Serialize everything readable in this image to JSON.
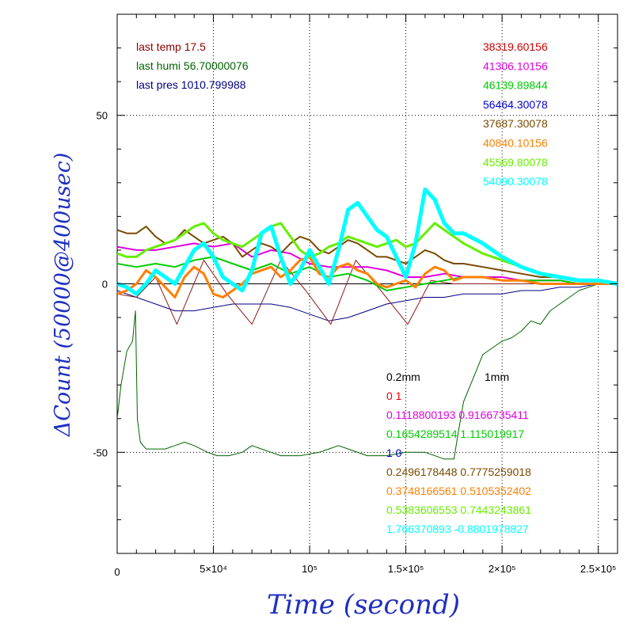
{
  "chart_data": {
    "type": "line",
    "xlabel": "Time (second)",
    "ylabel": "ΔCount (50000@400usec)",
    "xlim": [
      0,
      260000
    ],
    "ylim": [
      -80,
      80
    ],
    "x_ticks": [
      {
        "value": 0,
        "label": "0"
      },
      {
        "value": 50000,
        "label": "5×10⁴"
      },
      {
        "value": 100000,
        "label": "10⁵"
      },
      {
        "value": 150000,
        "label": "1.5×10⁵"
      },
      {
        "value": 200000,
        "label": "2×10⁵"
      },
      {
        "value": 250000,
        "label": "2.5×10⁵"
      }
    ],
    "y_ticks": [
      {
        "value": -50,
        "label": "-50"
      },
      {
        "value": 0,
        "label": "0"
      },
      {
        "value": 50,
        "label": "50"
      }
    ],
    "grid": true,
    "env_labels": [
      {
        "text": "last temp 17.5",
        "color": "#8b0000"
      },
      {
        "text": "last humi 56.70000076",
        "color": "#006400"
      },
      {
        "text": "last pres 1010.799988",
        "color": "#000080"
      }
    ],
    "series_values": [
      {
        "text": "38319.60156",
        "color": "#cc0000"
      },
      {
        "text": "41306.10156",
        "color": "#e000e0"
      },
      {
        "text": "46139.89844",
        "color": "#00cc00"
      },
      {
        "text": "56464.30078",
        "color": "#0000cc"
      },
      {
        "text": "37687.30078",
        "color": "#7a4a00"
      },
      {
        "text": "40840.10156",
        "color": "#ff7f00"
      },
      {
        "text": "45569.80078",
        "color": "#66ee00"
      },
      {
        "text": "54090.30078",
        "color": "#00ffff"
      }
    ],
    "coeff_header": [
      {
        "text": "0.2mm",
        "color": "#000000"
      },
      {
        "text": "1mm",
        "color": "#000000"
      }
    ],
    "coefficients": [
      {
        "text": "0 1",
        "color": "#ee0000"
      },
      {
        "text": "0.1118800193 0.9166735411",
        "color": "#e000e0"
      },
      {
        "text": "0.1654289514 1.115019917",
        "color": "#00cc00"
      },
      {
        "text": "1 0",
        "color": "#0000cc"
      },
      {
        "text": "0.2496178448 0.7775259018",
        "color": "#7a4a00"
      },
      {
        "text": "0.3748166561 0.5105352402",
        "color": "#ff7f00"
      },
      {
        "text": "0.5383606553 0.7443243861",
        "color": "#66ee00"
      },
      {
        "text": "1.766370893 -0.8801978827",
        "color": "#00ffff"
      }
    ],
    "series": [
      {
        "color": "#000080",
        "width": 1,
        "x": [
          0,
          10000,
          20000,
          30000,
          40000,
          50000,
          60000,
          70000,
          80000,
          90000,
          100000,
          110000,
          120000,
          130000,
          140000,
          150000,
          160000,
          170000,
          180000,
          190000,
          200000,
          210000,
          220000,
          230000,
          240000,
          250000,
          260000
        ],
        "y": [
          -2,
          -4,
          -6,
          -8,
          -8,
          -7,
          -6,
          -6,
          -6,
          -7,
          -9,
          -11,
          -10,
          -8,
          -6,
          -5,
          -4,
          -4,
          -3,
          -3,
          -3,
          -2,
          -2,
          -1,
          -1,
          0,
          0
        ]
      },
      {
        "color": "#8b1a1a",
        "width": 1,
        "x": [
          0,
          10000,
          20000,
          31000,
          45000,
          57000,
          70000,
          85000,
          98000,
          111000,
          124000,
          137000,
          151000,
          163000,
          175000,
          185000,
          200000,
          220000,
          240000,
          260000
        ],
        "y": [
          -3,
          -4,
          2,
          -12,
          7,
          -3,
          -12,
          7,
          -2,
          -12,
          7,
          -2,
          -12,
          1,
          0,
          0,
          0,
          0,
          0,
          0
        ]
      },
      {
        "color": "#006400",
        "width": 1,
        "x": [
          0,
          2000,
          5000,
          8000,
          9500,
          10500,
          12000,
          15000,
          20000,
          25000,
          30000,
          35000,
          40000,
          47000,
          52000,
          58000,
          65000,
          70000,
          75000,
          80000,
          85000,
          95000,
          105000,
          110000,
          115000,
          120000,
          130000,
          140000,
          150000,
          160000,
          170000,
          175000,
          177000,
          180000,
          185000,
          190000,
          195000,
          200000,
          205000,
          210000,
          215000,
          220000,
          225000,
          230000,
          235000,
          240000,
          245000,
          250000,
          255000,
          260000
        ],
        "y": [
          -40,
          -30,
          -20,
          -17,
          -8,
          -40,
          -47,
          -49,
          -49,
          -49,
          -48,
          -47,
          -48,
          -50,
          -51,
          -51,
          -50,
          -48,
          -49,
          -50,
          -51,
          -51,
          -50,
          -49,
          -48,
          -49,
          -51,
          -51,
          -50,
          -50,
          -52,
          -52,
          -45,
          -35,
          -28,
          -21,
          -19,
          -17,
          -16,
          -14,
          -11,
          -12,
          -8,
          -6,
          -4,
          -2,
          -1,
          0,
          0,
          0
        ]
      },
      {
        "color": "#e000e0",
        "width": 2,
        "x": [
          0,
          10000,
          20000,
          30000,
          40000,
          50000,
          60000,
          70000,
          80000,
          90000,
          100000,
          110000,
          120000,
          130000,
          140000,
          150000,
          160000,
          170000,
          180000,
          190000,
          200000,
          210000,
          220000,
          230000,
          240000,
          250000,
          260000
        ],
        "y": [
          11,
          10,
          10,
          11,
          12,
          11,
          12,
          8,
          10,
          9,
          6,
          5,
          5,
          5,
          4,
          2,
          2,
          3,
          2,
          2,
          2,
          1,
          1,
          1,
          0,
          0,
          0
        ]
      },
      {
        "color": "#00cc00",
        "width": 2,
        "x": [
          0,
          10000,
          20000,
          30000,
          40000,
          50000,
          60000,
          70000,
          80000,
          90000,
          100000,
          110000,
          120000,
          130000,
          140000,
          150000,
          160000,
          170000,
          180000,
          190000,
          200000,
          210000,
          220000,
          230000,
          240000,
          250000,
          260000
        ],
        "y": [
          6,
          5,
          6,
          5,
          7,
          8,
          6,
          4,
          6,
          3,
          5,
          2,
          3,
          1,
          -2,
          -1,
          0,
          1,
          2,
          2,
          1,
          1,
          1,
          1,
          0,
          0,
          0
        ]
      },
      {
        "color": "#7a4a00",
        "width": 2,
        "x": [
          0,
          5000,
          10000,
          15000,
          20000,
          25000,
          30000,
          35000,
          40000,
          45000,
          50000,
          55000,
          60000,
          65000,
          70000,
          75000,
          80000,
          85000,
          90000,
          95000,
          100000,
          105000,
          110000,
          115000,
          120000,
          125000,
          130000,
          135000,
          140000,
          145000,
          150000,
          155000,
          160000,
          165000,
          170000,
          175000,
          180000,
          190000,
          200000,
          210000,
          220000,
          230000,
          240000,
          250000,
          260000
        ],
        "y": [
          16,
          15,
          15,
          17,
          14,
          12,
          13,
          16,
          14,
          12,
          13,
          14,
          12,
          8,
          10,
          12,
          11,
          9,
          12,
          14,
          13,
          10,
          9,
          11,
          13,
          12,
          10,
          8,
          8,
          7,
          6,
          8,
          10,
          9,
          7,
          6,
          6,
          5,
          4,
          3,
          2,
          2,
          1,
          1,
          0
        ]
      },
      {
        "color": "#ff7f00",
        "width": 3,
        "x": [
          0,
          5000,
          10000,
          15000,
          20000,
          25000,
          30000,
          35000,
          40000,
          45000,
          50000,
          55000,
          60000,
          65000,
          70000,
          75000,
          80000,
          85000,
          90000,
          95000,
          100000,
          105000,
          110000,
          115000,
          120000,
          125000,
          130000,
          135000,
          140000,
          145000,
          150000,
          155000,
          160000,
          165000,
          170000,
          175000,
          180000,
          190000,
          200000,
          210000,
          220000,
          230000,
          240000,
          250000,
          260000
        ],
        "y": [
          -3,
          -2,
          0,
          4,
          2,
          -1,
          -4,
          2,
          5,
          3,
          -3,
          -4,
          -2,
          0,
          3,
          4,
          5,
          2,
          4,
          7,
          8,
          3,
          2,
          5,
          6,
          4,
          3,
          0,
          -1,
          0,
          1,
          -1,
          3,
          5,
          4,
          1,
          2,
          2,
          1,
          1,
          0,
          0,
          0,
          0,
          0
        ]
      },
      {
        "color": "#66ee00",
        "width": 3,
        "x": [
          0,
          5000,
          10000,
          15000,
          20000,
          25000,
          30000,
          35000,
          40000,
          45000,
          50000,
          55000,
          60000,
          65000,
          70000,
          75000,
          80000,
          85000,
          90000,
          95000,
          100000,
          105000,
          110000,
          115000,
          120000,
          125000,
          130000,
          135000,
          140000,
          145000,
          150000,
          155000,
          160000,
          165000,
          170000,
          175000,
          180000,
          190000,
          200000,
          210000,
          220000,
          230000,
          240000,
          250000,
          260000
        ],
        "y": [
          9,
          8,
          8,
          10,
          11,
          12,
          13,
          15,
          17,
          18,
          15,
          13,
          12,
          11,
          13,
          15,
          17,
          18,
          14,
          10,
          8,
          9,
          11,
          12,
          14,
          13,
          12,
          11,
          12,
          13,
          11,
          12,
          15,
          18,
          16,
          14,
          12,
          9,
          7,
          5,
          3,
          2,
          1,
          1,
          0
        ]
      },
      {
        "color": "#00ffff",
        "width": 5,
        "x": [
          0,
          5000,
          10000,
          15000,
          20000,
          25000,
          30000,
          35000,
          40000,
          45000,
          50000,
          55000,
          60000,
          65000,
          70000,
          75000,
          80000,
          85000,
          90000,
          95000,
          100000,
          105000,
          110000,
          115000,
          120000,
          125000,
          130000,
          135000,
          140000,
          145000,
          150000,
          155000,
          160000,
          165000,
          170000,
          175000,
          180000,
          190000,
          200000,
          210000,
          220000,
          230000,
          240000,
          250000,
          260000
        ],
        "y": [
          0,
          -1,
          -3,
          0,
          4,
          2,
          0,
          5,
          10,
          12,
          8,
          2,
          0,
          -2,
          4,
          15,
          17,
          8,
          0,
          4,
          10,
          5,
          0,
          10,
          22,
          24,
          20,
          16,
          14,
          8,
          2,
          12,
          28,
          25,
          18,
          15,
          15,
          12,
          8,
          5,
          3,
          2,
          1,
          1,
          0
        ]
      }
    ]
  }
}
